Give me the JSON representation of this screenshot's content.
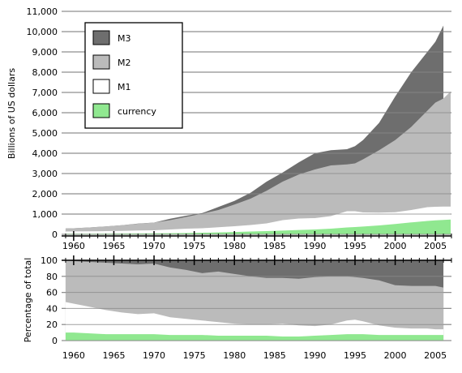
{
  "chart_data": [
    {
      "type": "area",
      "title": "",
      "ylabel": "Billions of US dollars",
      "xlabel": "",
      "xlim": [
        1958.5,
        2007
      ],
      "ylim": [
        0,
        11000
      ],
      "xticks": [
        1960,
        1965,
        1970,
        1975,
        1980,
        1985,
        1990,
        1995,
        2000,
        2005
      ],
      "xtick_labels": [
        "1960",
        "1965",
        "1970",
        "1975",
        "1980",
        "1985",
        "1990",
        "1995",
        "2000",
        "2005"
      ],
      "yticks": [
        0,
        1000,
        2000,
        3000,
        4000,
        5000,
        6000,
        7000,
        8000,
        9000,
        10000,
        11000
      ],
      "ytick_labels": [
        "0",
        "1,000",
        "2,000",
        "3,000",
        "4,000",
        "5,000",
        "6,000",
        "7,000",
        "8,000",
        "9,000",
        "10,000",
        "11,000"
      ],
      "grid": true,
      "legend_position": "top-left",
      "x": [
        1959,
        1960,
        1962,
        1964,
        1966,
        1968,
        1970,
        1972,
        1974,
        1976,
        1978,
        1980,
        1982,
        1984,
        1986,
        1988,
        1990,
        1992,
        1994,
        1995,
        1996,
        1998,
        2000,
        2002,
        2004,
        2005,
        2006,
        2006.9
      ],
      "series": [
        {
          "name": "M3",
          "color": "#6e6e6e",
          "values": [
            290,
            300,
            340,
            390,
            450,
            530,
            580,
            770,
            920,
            1050,
            1350,
            1650,
            2050,
            2600,
            3050,
            3550,
            4000,
            4150,
            4200,
            4350,
            4650,
            5500,
            6800,
            8000,
            9000,
            9500,
            10300,
            null
          ]
        },
        {
          "name": "M2",
          "color": "#bbbbbb",
          "values": [
            290,
            300,
            340,
            390,
            450,
            520,
            580,
            700,
            860,
            1020,
            1200,
            1470,
            1760,
            2150,
            2600,
            2950,
            3200,
            3400,
            3450,
            3500,
            3700,
            4150,
            4650,
            5300,
            6100,
            6500,
            6700,
            7050
          ]
        },
        {
          "name": "M1",
          "color": "#ffffff",
          "values": [
            140,
            145,
            148,
            158,
            168,
            190,
            200,
            240,
            280,
            300,
            350,
            400,
            460,
            540,
            700,
            780,
            800,
            900,
            1140,
            1140,
            1080,
            1070,
            1090,
            1200,
            1340,
            1360,
            1370,
            1370
          ]
        },
        {
          "name": "currency",
          "color": "#90e890",
          "values": [
            29,
            30,
            31,
            34,
            38,
            44,
            48,
            55,
            65,
            78,
            95,
            115,
            140,
            160,
            185,
            215,
            240,
            280,
            340,
            360,
            385,
            440,
            510,
            590,
            660,
            690,
            710,
            730
          ]
        }
      ]
    },
    {
      "type": "area",
      "title": "",
      "ylabel": "Percentage of total",
      "xlabel": "",
      "xlim": [
        1958.5,
        2007
      ],
      "ylim": [
        0,
        100
      ],
      "xticks": [
        1960,
        1965,
        1970,
        1975,
        1980,
        1985,
        1990,
        1995,
        2000,
        2005
      ],
      "xtick_labels": [
        "1960",
        "1965",
        "1970",
        "1975",
        "1980",
        "1985",
        "1990",
        "1995",
        "2000",
        "2005"
      ],
      "yticks": [
        0,
        20,
        40,
        60,
        80,
        100
      ],
      "ytick_labels": [
        "0",
        "20",
        "40",
        "60",
        "80",
        "100"
      ],
      "grid": true,
      "x": [
        1959,
        1960,
        1962,
        1964,
        1966,
        1968,
        1970,
        1972,
        1974,
        1976,
        1978,
        1980,
        1982,
        1984,
        1986,
        1988,
        1990,
        1992,
        1994,
        1995,
        1996,
        1998,
        2000,
        2002,
        2004,
        2005,
        2006
      ],
      "series": [
        {
          "name": "M3",
          "values": [
            100,
            100,
            100,
            100,
            100,
            100,
            100,
            100,
            100,
            100,
            100,
            100,
            100,
            100,
            100,
            100,
            100,
            100,
            100,
            100,
            100,
            100,
            100,
            100,
            100,
            100,
            100
          ]
        },
        {
          "name": "M2",
          "values": [
            100,
            99,
            98,
            97,
            96,
            95,
            96,
            91,
            88,
            84,
            86,
            83,
            80,
            78,
            78,
            77,
            79,
            80,
            80,
            79,
            78,
            75,
            69,
            68,
            68,
            68,
            66
          ]
        },
        {
          "name": "M1",
          "values": [
            48,
            46,
            42,
            38,
            35,
            33,
            34,
            29,
            27,
            25,
            23,
            21,
            20,
            20,
            21,
            19,
            18,
            20,
            25,
            26,
            24,
            19,
            16,
            15,
            15,
            14,
            14
          ]
        },
        {
          "name": "currency",
          "values": [
            10,
            10,
            9,
            8,
            8,
            8,
            8,
            7,
            7,
            7,
            6,
            6,
            6,
            6,
            5,
            5,
            6,
            7,
            8,
            8,
            8,
            7,
            7,
            7,
            7,
            7,
            7
          ]
        }
      ]
    }
  ]
}
